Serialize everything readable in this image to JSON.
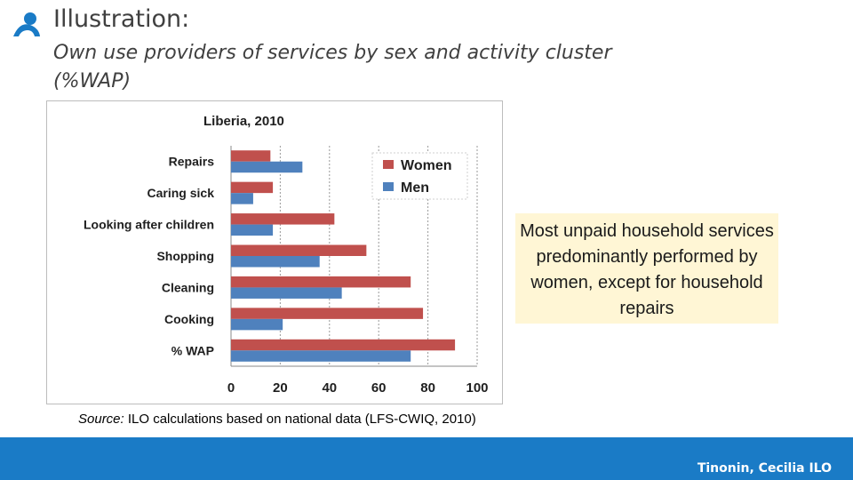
{
  "header": {
    "title": "Illustration:",
    "subtitle": "Own use providers of services by sex and activity cluster (%WAP)"
  },
  "chart_data": {
    "type": "bar",
    "orientation": "horizontal",
    "title": "Liberia, 2010",
    "categories": [
      "Repairs",
      "Caring sick",
      "Looking after children",
      "Shopping",
      "Cleaning",
      "Cooking",
      "% WAP"
    ],
    "series": [
      {
        "name": "Women",
        "color": "#c0504d",
        "values": [
          16,
          17,
          42,
          55,
          73,
          78,
          91
        ]
      },
      {
        "name": "Men",
        "color": "#4f81bd",
        "values": [
          29,
          9,
          17,
          36,
          45,
          21,
          73
        ]
      }
    ],
    "xlim": [
      0,
      100
    ],
    "xticks": [
      "0",
      "20",
      "40",
      "60",
      "80",
      "100"
    ],
    "grid": "vertical dotted",
    "legend": "top-right"
  },
  "callout": {
    "text": "Most unpaid household services predominantly performed by women, except for household repairs"
  },
  "source": {
    "label": "Source:",
    "text": " ILO calculations based on national data (LFS-CWIQ, 2010)"
  },
  "footer": {
    "author": "Tinonin, Cecilia ILO",
    "color": "#1a7bc6"
  }
}
